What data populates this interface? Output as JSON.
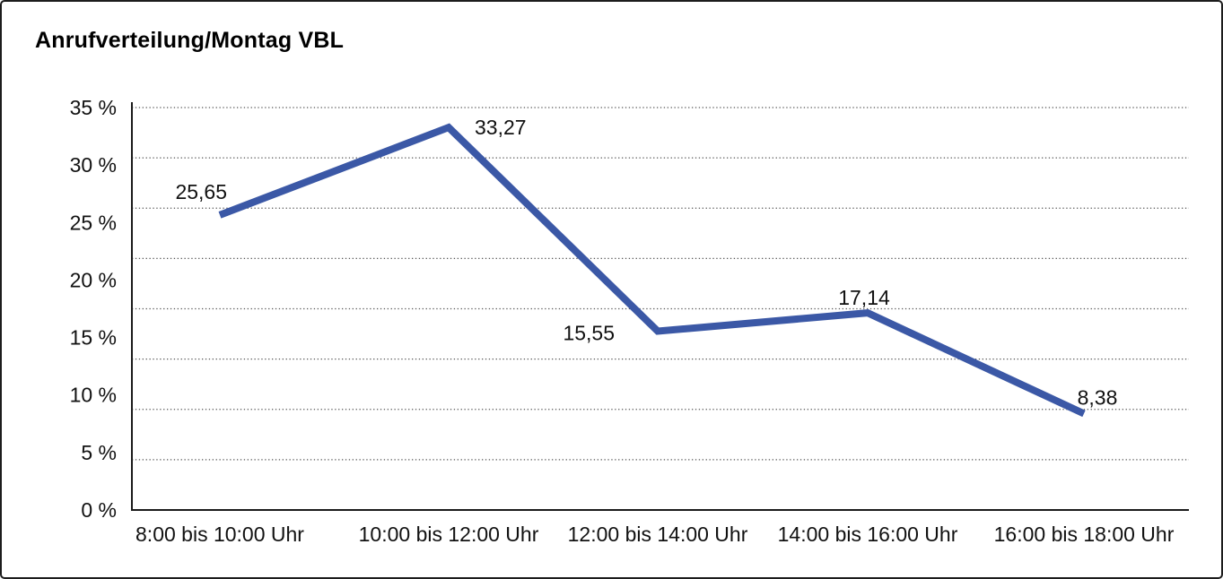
{
  "chart_data": {
    "type": "line",
    "title": "Anrufverteilung/Montag VBL",
    "categories": [
      "8:00 bis 10:00 Uhr",
      "10:00 bis 12:00 Uhr",
      "12:00 bis 14:00 Uhr",
      "14:00 bis 16:00 Uhr",
      "16:00 bis 18:00 Uhr"
    ],
    "values": [
      25.65,
      33.27,
      15.55,
      17.14,
      8.38
    ],
    "data_labels": [
      "25,65",
      "33,27",
      "15,55",
      "17,14",
      "8,38"
    ],
    "xlabel": "",
    "ylabel": "",
    "ylim": [
      0,
      35
    ],
    "ytick_step": 5,
    "ytick_labels": [
      "0 %",
      "5 %",
      "10 %",
      "15 %",
      "20 %",
      "25 %",
      "30 %",
      "35 %"
    ],
    "grid": {
      "horizontal": "dotted",
      "intervals": 8
    },
    "legend": "none",
    "line_color": "#3B58A6",
    "axis_color": "#1a1a1a",
    "gridline_color": "#555555",
    "text_color": "#111111"
  }
}
